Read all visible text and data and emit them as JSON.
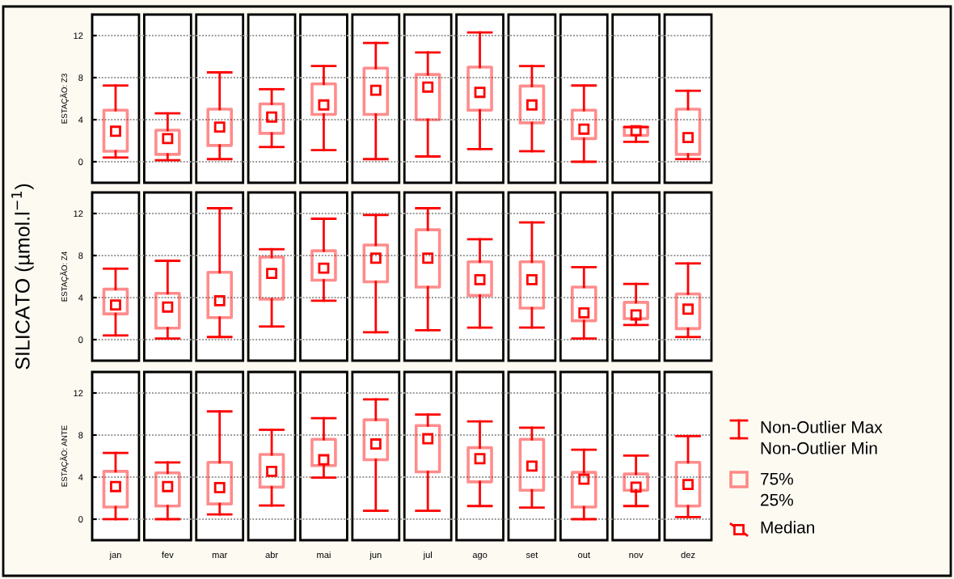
{
  "chart_data": [
    {
      "type": "box",
      "ylabel": "ESTAÇÃO: Z3",
      "categories": [
        null,
        null,
        null,
        null,
        null,
        null,
        null,
        null,
        null,
        null,
        null,
        null
      ],
      "ylim": [
        -2,
        14
      ],
      "yticks": [
        0,
        4,
        8,
        12
      ],
      "grid": "y",
      "marker": "square",
      "color": "#ff0000",
      "boxes": [
        {
          "low": 0.4,
          "q1": 1.0,
          "median": 2.9,
          "q3": 4.9,
          "high": 7.25
        },
        {
          "low": 0.15,
          "q1": 0.7,
          "median": 2.2,
          "q3": 3.0,
          "high": 4.6
        },
        {
          "low": 0.25,
          "q1": 1.55,
          "median": 3.3,
          "q3": 5.0,
          "high": 8.5
        },
        {
          "low": 1.4,
          "q1": 2.7,
          "median": 4.25,
          "q3": 5.5,
          "high": 6.9
        },
        {
          "low": 1.1,
          "q1": 4.5,
          "median": 5.4,
          "q3": 7.4,
          "high": 9.1
        },
        {
          "low": 0.25,
          "q1": 4.5,
          "median": 6.8,
          "q3": 8.9,
          "high": 11.3
        },
        {
          "low": 0.5,
          "q1": 4.0,
          "median": 7.1,
          "q3": 8.3,
          "high": 10.4
        },
        {
          "low": 1.2,
          "q1": 4.9,
          "median": 6.6,
          "q3": 9.0,
          "high": 12.3
        },
        {
          "low": 1.0,
          "q1": 3.7,
          "median": 5.4,
          "q3": 7.2,
          "high": 9.1
        },
        {
          "low": 0,
          "q1": 2.2,
          "median": 3.1,
          "q3": 4.9,
          "high": 7.25
        },
        {
          "low": 1.9,
          "q1": 2.5,
          "median": 2.95,
          "q3": 3.3,
          "high": 3.3
        },
        {
          "low": 0.25,
          "q1": 0.7,
          "median": 2.3,
          "q3": 5.0,
          "high": 6.75
        }
      ]
    },
    {
      "type": "box",
      "ylabel": "ESTAÇÃO: Z4",
      "categories": [
        null,
        null,
        null,
        null,
        null,
        null,
        null,
        null,
        null,
        null,
        null,
        null
      ],
      "ylim": [
        -2,
        14
      ],
      "yticks": [
        0,
        4,
        8,
        12
      ],
      "grid": "y",
      "marker": "square",
      "color": "#ff0000",
      "annotations": [
        "SILICATO (µmol.l$^{−1}$)"
      ],
      "boxes": [
        {
          "low": 0.4,
          "q1": 2.45,
          "median": 3.3,
          "q3": 4.8,
          "high": 6.75
        },
        {
          "low": 0.1,
          "q1": 1.1,
          "median": 3.1,
          "q3": 4.4,
          "high": 7.5
        },
        {
          "low": 0.25,
          "q1": 2.1,
          "median": 3.7,
          "q3": 6.4,
          "high": 12.5
        },
        {
          "low": 1.25,
          "q1": 3.85,
          "median": 6.3,
          "q3": 7.85,
          "high": 8.6
        },
        {
          "low": 3.7,
          "q1": 5.65,
          "median": 6.8,
          "q3": 8.45,
          "high": 11.5
        },
        {
          "low": 0.7,
          "q1": 5.5,
          "median": 7.75,
          "q3": 9.0,
          "high": 11.85
        },
        {
          "low": 0.9,
          "q1": 5.0,
          "median": 7.75,
          "q3": 10.45,
          "high": 12.5
        },
        {
          "low": 1.15,
          "q1": 4.2,
          "median": 5.7,
          "q3": 7.4,
          "high": 9.55
        },
        {
          "low": 1.15,
          "q1": 3.0,
          "median": 5.7,
          "q3": 7.4,
          "high": 11.15
        },
        {
          "low": 0.1,
          "q1": 1.8,
          "median": 2.55,
          "q3": 5.0,
          "high": 6.9
        },
        {
          "low": 1.4,
          "q1": 2.0,
          "median": 2.35,
          "q3": 3.55,
          "high": 5.3
        },
        {
          "low": 0.25,
          "q1": 1.05,
          "median": 2.9,
          "q3": 4.35,
          "high": 7.25
        }
      ]
    },
    {
      "type": "box",
      "ylabel": "ESTAÇÃO: ANTE",
      "categories": [
        "jan",
        "fev",
        "mar",
        "abr",
        "mai",
        "jun",
        "jul",
        "ago",
        "set",
        "out",
        "nov",
        "dez"
      ],
      "ylim": [
        -2,
        14
      ],
      "yticks": [
        0,
        4,
        8,
        12
      ],
      "grid": "y",
      "marker": "square",
      "color": "#ff0000",
      "annotations": [
        "Non-Outlier Max",
        "Non-Outlier Min",
        "75%",
        "25%",
        "Median"
      ],
      "boxes": [
        {
          "low": 0,
          "q1": 1.15,
          "median": 3.1,
          "q3": 4.55,
          "high": 6.3
        },
        {
          "low": 0,
          "q1": 1.25,
          "median": 3.1,
          "q3": 4.4,
          "high": 5.4
        },
        {
          "low": 0.45,
          "q1": 1.45,
          "median": 3.0,
          "q3": 5.4,
          "high": 10.25
        },
        {
          "low": 1.3,
          "q1": 3.05,
          "median": 4.55,
          "q3": 6.15,
          "high": 8.5
        },
        {
          "low": 3.95,
          "q1": 5.1,
          "median": 5.65,
          "q3": 7.6,
          "high": 9.6
        },
        {
          "low": 0.8,
          "q1": 5.65,
          "median": 7.15,
          "q3": 9.45,
          "high": 11.4
        },
        {
          "low": 0.8,
          "q1": 4.5,
          "median": 7.65,
          "q3": 8.9,
          "high": 9.95
        },
        {
          "low": 1.25,
          "q1": 3.55,
          "median": 5.75,
          "q3": 6.8,
          "high": 9.3
        },
        {
          "low": 1.1,
          "q1": 2.75,
          "median": 5.05,
          "q3": 7.6,
          "high": 8.7
        },
        {
          "low": 0,
          "q1": 1.15,
          "median": 3.8,
          "q3": 4.45,
          "high": 6.6
        },
        {
          "low": 1.25,
          "q1": 2.75,
          "median": 3.05,
          "q3": 4.3,
          "high": 6.05
        },
        {
          "low": 0.2,
          "q1": 1.25,
          "median": 3.3,
          "q3": 5.4,
          "high": 7.9
        }
      ]
    }
  ]
}
